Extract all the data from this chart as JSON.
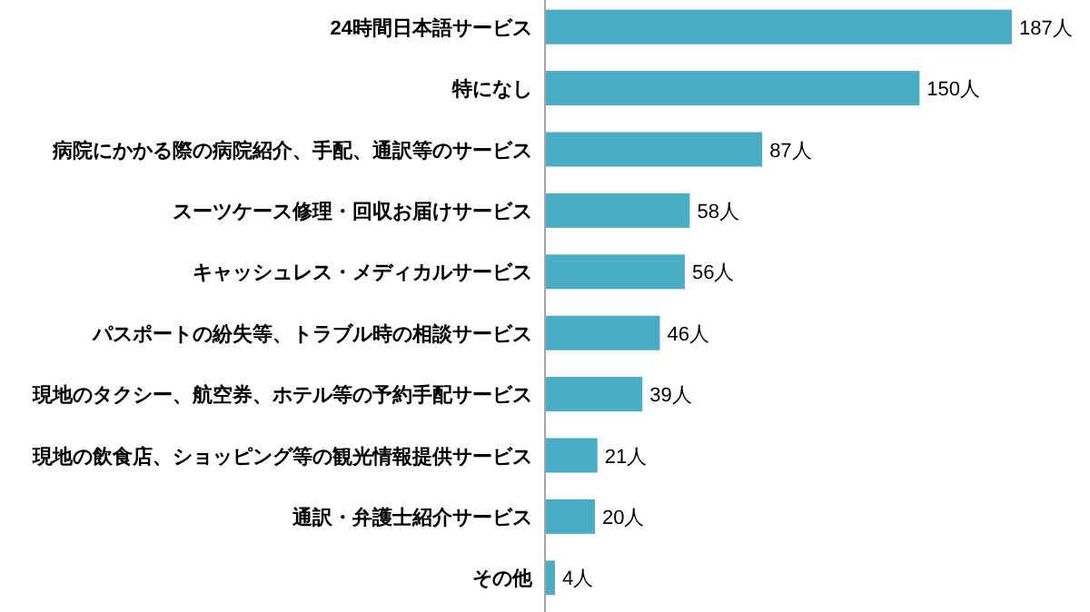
{
  "chart_data": {
    "type": "bar",
    "orientation": "horizontal",
    "color": "#4bacc6",
    "categories": [
      "24時間日本語サービス",
      "特になし",
      "病院にかかる際の病院紹介、手配、通訳等のサービス",
      "スーツケース修理・回収お届けサービス",
      "キャッシュレス・メディカルサービス",
      "パスポートの紛失等、トラブル時の相談サービス",
      "現地のタクシー、航空券、ホテル等の予約手配サービス",
      "現地の飲食店、ショッピング等の観光情報提供サービス",
      "通訳・弁護士紹介サービス",
      "その他"
    ],
    "values": [
      187,
      150,
      87,
      58,
      56,
      46,
      39,
      21,
      20,
      4
    ],
    "value_labels": [
      "187人",
      "150人",
      "87人",
      "58人",
      "56人",
      "46人",
      "39人",
      "21人",
      "20人",
      "4人"
    ]
  }
}
